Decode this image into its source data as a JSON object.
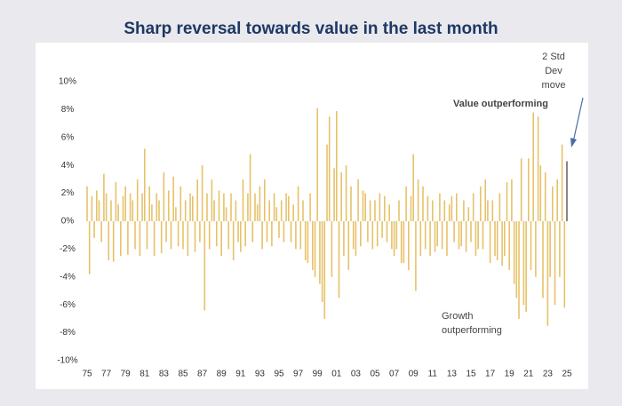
{
  "chart_data": {
    "type": "bar",
    "title": "Sharp reversal towards value in the last month",
    "annotations": {
      "std_dev": [
        "2 Std",
        "Dev",
        "move"
      ],
      "value": [
        "Value outperforming"
      ],
      "growth": [
        "Growth",
        "outperforming"
      ]
    },
    "color": "#e6c26a",
    "last_bar_color": "#6b6b6b",
    "ylim": [
      -10,
      10
    ],
    "yticks": [
      {
        "value": -10,
        "label": "-10%"
      },
      {
        "value": -8,
        "label": "-8%"
      },
      {
        "value": -6,
        "label": "-6%"
      },
      {
        "value": -4,
        "label": "-4%"
      },
      {
        "value": -2,
        "label": "-2%"
      },
      {
        "value": 0,
        "label": "0%"
      },
      {
        "value": 2,
        "label": "2%"
      },
      {
        "value": 4,
        "label": "4%"
      },
      {
        "value": 6,
        "label": "6%"
      },
      {
        "value": 8,
        "label": "8%"
      },
      {
        "value": 10,
        "label": "10%"
      }
    ],
    "categories": [
      "75",
      null,
      null,
      null,
      null,
      null,
      null,
      null,
      "77",
      null,
      null,
      null,
      null,
      null,
      null,
      null,
      "79",
      null,
      null,
      null,
      null,
      null,
      null,
      null,
      "81",
      null,
      null,
      null,
      null,
      null,
      null,
      null,
      "83",
      null,
      null,
      null,
      null,
      null,
      null,
      null,
      "85",
      null,
      null,
      null,
      null,
      null,
      null,
      null,
      "87",
      null,
      null,
      null,
      null,
      null,
      null,
      null,
      "89",
      null,
      null,
      null,
      null,
      null,
      null,
      null,
      "91",
      null,
      null,
      null,
      null,
      null,
      null,
      null,
      "93",
      null,
      null,
      null,
      null,
      null,
      null,
      null,
      "95",
      null,
      null,
      null,
      null,
      null,
      null,
      null,
      "97",
      null,
      null,
      null,
      null,
      null,
      null,
      null,
      "99",
      null,
      null,
      null,
      null,
      null,
      null,
      null,
      "01",
      null,
      null,
      null,
      null,
      null,
      null,
      null,
      "03",
      null,
      null,
      null,
      null,
      null,
      null,
      null,
      "05",
      null,
      null,
      null,
      null,
      null,
      null,
      null,
      "07",
      null,
      null,
      null,
      null,
      null,
      null,
      null,
      "09",
      null,
      null,
      null,
      null,
      null,
      null,
      null,
      "11",
      null,
      null,
      null,
      null,
      null,
      null,
      null,
      "13",
      null,
      null,
      null,
      null,
      null,
      null,
      null,
      "15",
      null,
      null,
      null,
      null,
      null,
      null,
      null,
      "17",
      null,
      null,
      null,
      null,
      null,
      null,
      null,
      "19",
      null,
      null,
      null,
      null,
      null,
      null,
      null,
      "21",
      null,
      null,
      null,
      null,
      null,
      null,
      null,
      "23",
      null,
      null,
      null,
      null,
      null,
      null,
      null,
      "25"
    ],
    "values": [
      2.5,
      -3.8,
      1.8,
      -1.2,
      2.2,
      1.5,
      -1.5,
      3.4,
      2.0,
      -2.8,
      1.5,
      -2.9,
      2.8,
      1.2,
      -2.5,
      1.8,
      2.5,
      -2.4,
      2.0,
      1.5,
      -2.0,
      3.0,
      -2.5,
      2.0,
      5.2,
      -2.0,
      2.5,
      1.2,
      -2.5,
      2.0,
      1.5,
      -2.3,
      3.5,
      -1.5,
      2.2,
      -2.0,
      3.2,
      1.0,
      -1.8,
      2.5,
      -2.0,
      1.5,
      -2.5,
      2.0,
      1.8,
      -2.2,
      3.0,
      -1.5,
      4.0,
      -6.4,
      2.0,
      -2.0,
      3.0,
      1.5,
      -1.8,
      2.2,
      -2.5,
      2.0,
      1.0,
      -2.0,
      2.0,
      -2.8,
      1.5,
      -1.5,
      -2.2,
      3.0,
      -1.8,
      2.0,
      4.8,
      -1.5,
      2.0,
      1.2,
      2.5,
      -2.0,
      3.0,
      -1.5,
      1.5,
      -1.8,
      2.0,
      1.0,
      -1.2,
      1.5,
      -1.5,
      2.0,
      1.8,
      -1.5,
      1.2,
      -2.0,
      2.5,
      -2.0,
      1.5,
      -2.8,
      -3.0,
      2.0,
      -3.5,
      -4.0,
      8.1,
      -4.5,
      -5.8,
      -7.0,
      5.5,
      7.5,
      -4.0,
      3.8,
      7.9,
      -5.5,
      3.5,
      -2.5,
      4.0,
      -3.5,
      2.5,
      -2.0,
      -2.5,
      3.0,
      -1.8,
      2.2,
      2.0,
      -1.5,
      1.5,
      -2.0,
      1.5,
      -1.8,
      2.0,
      -1.2,
      1.8,
      -1.5,
      1.2,
      -2.0,
      -2.5,
      -2.0,
      1.5,
      -3.0,
      -3.0,
      2.5,
      -3.5,
      1.8,
      4.8,
      -5.0,
      3.0,
      -2.5,
      2.5,
      -2.0,
      1.8,
      -2.5,
      1.5,
      -2.2,
      -1.8,
      2.0,
      -2.0,
      1.5,
      -2.5,
      1.2,
      1.8,
      -1.5,
      2.0,
      -2.0,
      -1.8,
      1.5,
      -2.2,
      1.0,
      -1.5,
      2.0,
      -2.5,
      -2.0,
      2.5,
      -2.0,
      3.0,
      1.5,
      -3.0,
      1.5,
      -2.5,
      -2.8,
      2.0,
      -3.2,
      -2.5,
      2.8,
      -3.5,
      3.0,
      -4.5,
      -5.5,
      -7.0,
      4.5,
      -6.0,
      -6.5,
      4.5,
      -3.5,
      7.8,
      -4.0,
      7.5,
      4.0,
      -5.5,
      3.5,
      -7.5,
      -4.0,
      2.5,
      -6.0,
      3.0,
      -4.0,
      5.5,
      -6.2,
      4.3
    ]
  }
}
